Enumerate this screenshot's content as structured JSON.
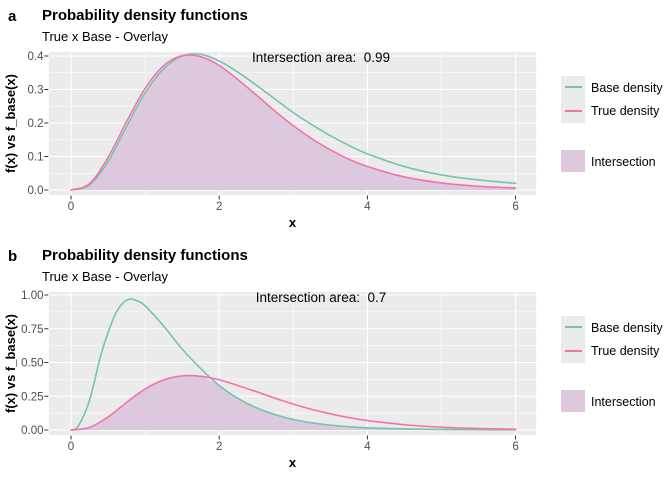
{
  "legend": {
    "base_label": "Base density",
    "true_label": "True density",
    "intersection_label": "Intersection"
  },
  "colors": {
    "panel_background": "#EBEBEB",
    "gridline": "#FFFFFF",
    "base_density": "#76C2AE",
    "true_density": "#F571AC",
    "intersection_fill": "#DCC9DE",
    "tick_label": "#4D4D4D",
    "axis_tick_mark": "#333333",
    "text": "#000000"
  },
  "panels": [
    {
      "tag": "a",
      "title": "Probability density functions",
      "subtitle": "True x Base - Overlay",
      "annotation": "Intersection area:  0.99",
      "xlabel": "x",
      "ylabel": "f(x) vs f_base(x)"
    },
    {
      "tag": "b",
      "title": "Probability density functions",
      "subtitle": "True x Base - Overlay",
      "annotation": "Intersection area:  0.7",
      "xlabel": "x",
      "ylabel": "f(x) vs f_base(x)"
    }
  ],
  "chart_data": [
    {
      "type": "line",
      "title": "Probability density functions",
      "subtitle": "True x Base - Overlay",
      "annotation": "Intersection area:  0.99",
      "xlabel": "x",
      "ylabel": "f(x) vs f_base(x)",
      "xlim": [
        0,
        6
      ],
      "ylim": [
        0,
        0.41
      ],
      "grid": true,
      "legend_position": "right",
      "x_ticks": [
        0,
        2,
        4,
        6
      ],
      "x_tick_labels": [
        "0",
        "2",
        "4",
        "6"
      ],
      "y_ticks": [
        0,
        0.1,
        0.2,
        0.3,
        0.4
      ],
      "y_tick_labels": [
        "0.0",
        "0.1",
        "0.2",
        "0.3",
        "0.4"
      ],
      "series": [
        {
          "name": "Base density",
          "role": "line",
          "color": "#76C2AE",
          "x": [
            0,
            0.25,
            0.5,
            0.75,
            1,
            1.25,
            1.5,
            1.75,
            2,
            2.25,
            2.5,
            2.75,
            3,
            3.25,
            3.5,
            3.75,
            4,
            4.5,
            5,
            5.5,
            6
          ],
          "y": [
            0,
            0.015,
            0.085,
            0.19,
            0.29,
            0.362,
            0.4,
            0.405,
            0.385,
            0.352,
            0.313,
            0.272,
            0.231,
            0.195,
            0.162,
            0.133,
            0.108,
            0.07,
            0.045,
            0.03,
            0.02
          ]
        },
        {
          "name": "True density",
          "role": "line",
          "color": "#F571AC",
          "x": [
            0,
            0.25,
            0.5,
            0.75,
            1,
            1.25,
            1.5,
            1.75,
            2,
            2.25,
            2.5,
            2.75,
            3,
            3.25,
            3.5,
            3.75,
            4,
            4.5,
            5,
            5.5,
            6
          ],
          "y": [
            0,
            0.019,
            0.097,
            0.204,
            0.303,
            0.371,
            0.401,
            0.398,
            0.372,
            0.33,
            0.284,
            0.236,
            0.192,
            0.153,
            0.12,
            0.092,
            0.07,
            0.039,
            0.021,
            0.011,
            0.006
          ]
        },
        {
          "name": "Intersection",
          "role": "area",
          "color": "#DCC9DE",
          "x": [
            0,
            0.25,
            0.5,
            0.75,
            1,
            1.25,
            1.5,
            1.75,
            2,
            2.25,
            2.5,
            2.75,
            3,
            3.25,
            3.5,
            3.75,
            4,
            4.5,
            5,
            5.5,
            6
          ],
          "y": [
            0,
            0.015,
            0.085,
            0.19,
            0.29,
            0.362,
            0.4,
            0.398,
            0.372,
            0.33,
            0.284,
            0.236,
            0.192,
            0.153,
            0.12,
            0.092,
            0.07,
            0.039,
            0.021,
            0.011,
            0.006
          ]
        }
      ]
    },
    {
      "type": "line",
      "title": "Probability density functions",
      "subtitle": "True x Base - Overlay",
      "annotation": "Intersection area:  0.7",
      "xlabel": "x",
      "ylabel": "f(x) vs f_base(x)",
      "xlim": [
        0,
        6
      ],
      "ylim": [
        0,
        1.0
      ],
      "grid": true,
      "legend_position": "right",
      "x_ticks": [
        0,
        2,
        4,
        6
      ],
      "x_tick_labels": [
        "0",
        "2",
        "4",
        "6"
      ],
      "y_ticks": [
        0,
        0.25,
        0.5,
        0.75,
        1.0
      ],
      "y_tick_labels": [
        "0.00",
        "0.25",
        "0.50",
        "0.75",
        "1.00"
      ],
      "series": [
        {
          "name": "Base density",
          "role": "line",
          "color": "#76C2AE",
          "x": [
            0,
            0.1,
            0.25,
            0.4,
            0.5,
            0.6,
            0.7,
            0.8,
            0.9,
            1,
            1.25,
            1.5,
            1.75,
            2,
            2.25,
            2.5,
            2.75,
            3,
            3.25,
            3.5,
            3.75,
            4,
            4.5,
            5,
            5.5,
            6
          ],
          "y": [
            0,
            0.03,
            0.22,
            0.55,
            0.72,
            0.86,
            0.94,
            0.97,
            0.955,
            0.92,
            0.77,
            0.6,
            0.455,
            0.33,
            0.235,
            0.165,
            0.115,
            0.078,
            0.053,
            0.036,
            0.024,
            0.016,
            0.008,
            0.004,
            0.003,
            0.002
          ]
        },
        {
          "name": "True density",
          "role": "line",
          "color": "#F571AC",
          "x": [
            0,
            0.25,
            0.5,
            0.75,
            1,
            1.25,
            1.5,
            1.75,
            2,
            2.25,
            2.5,
            2.75,
            3,
            3.25,
            3.5,
            3.75,
            4,
            4.5,
            5,
            5.5,
            6
          ],
          "y": [
            0,
            0.019,
            0.097,
            0.204,
            0.303,
            0.371,
            0.401,
            0.398,
            0.372,
            0.33,
            0.284,
            0.236,
            0.192,
            0.153,
            0.12,
            0.092,
            0.07,
            0.039,
            0.021,
            0.011,
            0.006
          ]
        },
        {
          "name": "Intersection",
          "role": "area",
          "color": "#DCC9DE",
          "x": [
            0,
            0.25,
            0.5,
            0.75,
            1,
            1.25,
            1.5,
            1.75,
            2,
            2.25,
            2.5,
            2.75,
            3,
            3.25,
            3.5,
            3.75,
            4,
            4.5,
            5,
            5.5,
            6
          ],
          "y": [
            0,
            0.019,
            0.097,
            0.204,
            0.303,
            0.371,
            0.401,
            0.398,
            0.33,
            0.235,
            0.165,
            0.115,
            0.078,
            0.053,
            0.036,
            0.024,
            0.016,
            0.008,
            0.004,
            0.003,
            0.002
          ]
        }
      ]
    }
  ]
}
